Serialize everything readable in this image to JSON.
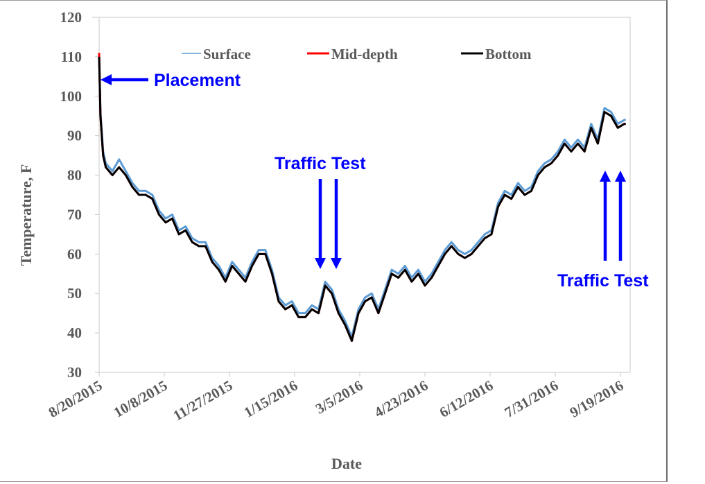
{
  "chart_data": {
    "type": "line",
    "title": "",
    "xlabel": "Date",
    "ylabel": "Temperature, F",
    "ylim": [
      30,
      120
    ],
    "yticks": [
      30,
      40,
      50,
      60,
      70,
      80,
      90,
      100,
      110,
      120
    ],
    "x_start_date": "8/20/2015",
    "x_tick_step_days": 49,
    "xlim_days": [
      0,
      404
    ],
    "xtick_labels": [
      "8/20/2015",
      "10/8/2015",
      "11/27/2015",
      "1/15/2016",
      "3/5/2016",
      "4/23/2016",
      "6/12/2016",
      "7/31/2016",
      "9/19/2016"
    ],
    "grid": false,
    "legend_position": "top",
    "x_days": [
      0,
      1,
      3,
      5,
      10,
      15,
      20,
      25,
      30,
      35,
      40,
      45,
      50,
      55,
      60,
      65,
      70,
      75,
      80,
      85,
      90,
      95,
      100,
      105,
      110,
      115,
      120,
      125,
      130,
      135,
      140,
      145,
      150,
      155,
      160,
      165,
      170,
      175,
      180,
      185,
      190,
      195,
      200,
      205,
      210,
      215,
      220,
      225,
      230,
      235,
      240,
      245,
      250,
      255,
      260,
      265,
      270,
      275,
      280,
      285,
      290,
      295,
      300,
      305,
      310,
      315,
      320,
      325,
      330,
      335,
      340,
      345,
      350,
      355,
      360,
      365,
      370,
      375,
      380,
      385,
      390,
      395,
      396
    ],
    "series": [
      {
        "name": "Surface",
        "color": "#5b9bd5",
        "values": [
          110,
          96,
          86,
          83,
          81,
          84,
          81,
          78,
          76,
          76,
          75,
          71,
          69,
          70,
          66,
          67,
          64,
          63,
          63,
          59,
          57,
          54,
          58,
          56,
          54,
          58,
          61,
          61,
          56,
          49,
          47,
          48,
          45,
          45,
          47,
          46,
          53,
          51,
          46,
          43,
          39,
          46,
          49,
          50,
          46,
          51,
          56,
          55,
          57,
          54,
          56,
          53,
          55,
          58,
          61,
          63,
          61,
          60,
          61,
          63,
          65,
          66,
          73,
          76,
          75,
          78,
          76,
          77,
          81,
          83,
          84,
          86,
          89,
          87,
          89,
          87,
          93,
          89,
          97,
          96,
          93,
          94,
          94
        ]
      },
      {
        "name": "Mid-depth",
        "color": "#ff0000",
        "values": [
          111,
          95,
          85,
          82,
          80,
          82,
          80,
          77,
          75,
          75,
          74,
          70,
          68,
          69,
          65,
          66,
          63,
          62,
          62,
          58,
          56,
          53,
          57,
          55,
          53,
          57,
          60,
          60,
          55,
          48,
          46,
          47,
          44,
          44,
          46,
          45,
          52,
          50,
          45,
          42,
          38,
          45,
          48,
          49,
          45,
          50,
          55,
          54,
          56,
          53,
          55,
          52,
          54,
          57,
          60,
          62,
          60,
          59,
          60,
          62,
          64,
          65,
          72,
          75,
          74,
          77,
          75,
          76,
          80,
          82,
          83,
          85,
          88,
          86,
          88,
          86,
          92,
          88,
          96,
          95,
          92,
          93,
          93
        ]
      },
      {
        "name": "Bottom",
        "color": "#000000",
        "values": [
          110,
          95,
          85,
          82,
          80,
          82,
          80,
          77,
          75,
          75,
          74,
          70,
          68,
          69,
          65,
          66,
          63,
          62,
          62,
          58,
          56,
          53,
          57,
          55,
          53,
          57,
          60,
          60,
          55,
          48,
          46,
          47,
          44,
          44,
          46,
          45,
          52,
          50,
          45,
          42,
          38,
          45,
          48,
          49,
          45,
          50,
          55,
          54,
          56,
          53,
          55,
          52,
          54,
          57,
          60,
          62,
          60,
          59,
          60,
          62,
          64,
          65,
          72,
          75,
          74,
          77,
          75,
          76,
          80,
          82,
          83,
          85,
          88,
          86,
          88,
          86,
          92,
          88,
          96,
          95,
          92,
          93,
          93
        ]
      }
    ],
    "annotations": [
      {
        "text": "Placement",
        "arrow": "left",
        "day": 0,
        "value": 104.5
      },
      {
        "text": "Traffic Test",
        "arrow": "down",
        "days": [
          167,
          179
        ],
        "value": 56
      },
      {
        "text": "Traffic Test",
        "arrow": "up",
        "days": [
          383,
          394
        ],
        "value": 82
      }
    ]
  }
}
